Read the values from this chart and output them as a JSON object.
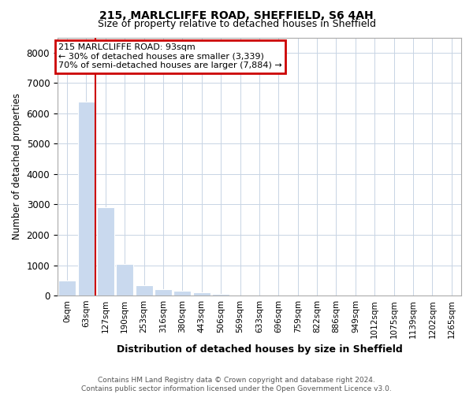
{
  "title_line1": "215, MARLCLIFFE ROAD, SHEFFIELD, S6 4AH",
  "title_line2": "Size of property relative to detached houses in Sheffield",
  "xlabel": "Distribution of detached houses by size in Sheffield",
  "ylabel": "Number of detached properties",
  "bar_labels": [
    "0sqm",
    "63sqm",
    "127sqm",
    "190sqm",
    "253sqm",
    "316sqm",
    "380sqm",
    "443sqm",
    "506sqm",
    "569sqm",
    "633sqm",
    "696sqm",
    "759sqm",
    "822sqm",
    "886sqm",
    "949sqm",
    "1012sqm",
    "1075sqm",
    "1139sqm",
    "1202sqm",
    "1265sqm"
  ],
  "bar_values": [
    490,
    6380,
    2900,
    1030,
    350,
    220,
    160,
    100,
    60,
    0,
    0,
    0,
    0,
    0,
    0,
    0,
    0,
    0,
    0,
    0,
    0
  ],
  "bar_color": "#c9d9ee",
  "red_line_x": 1.47,
  "annotation_line1": "215 MARLCLIFFE ROAD: 93sqm",
  "annotation_line2": "← 30% of detached houses are smaller (3,339)",
  "annotation_line3": "70% of semi-detached houses are larger (7,884) →",
  "annotation_box_color": "#cc0000",
  "ylim": [
    0,
    8500
  ],
  "yticks": [
    0,
    1000,
    2000,
    3000,
    4000,
    5000,
    6000,
    7000,
    8000
  ],
  "footer_line1": "Contains HM Land Registry data © Crown copyright and database right 2024.",
  "footer_line2": "Contains public sector information licensed under the Open Government Licence v3.0.",
  "background_color": "#ffffff",
  "grid_color": "#c8d4e4",
  "title1_fontsize": 10,
  "title2_fontsize": 9
}
